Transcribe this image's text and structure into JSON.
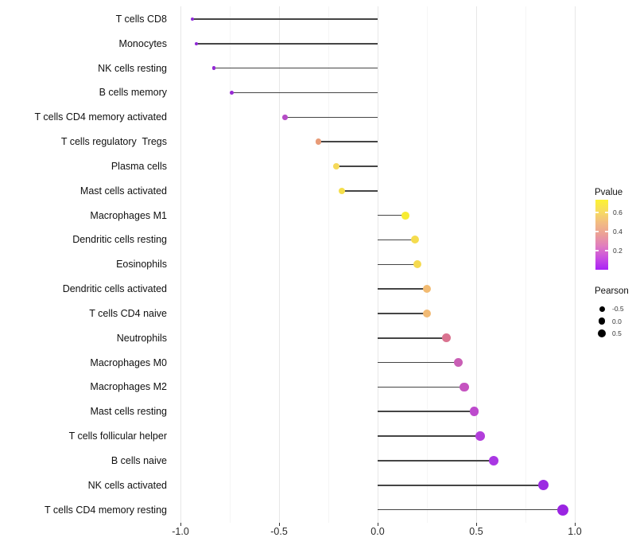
{
  "chart_data": {
    "type": "scatter",
    "variant": "horizontal-lollipop",
    "title": "",
    "xlabel": "",
    "ylabel": "",
    "xlim": [
      -1.06,
      1.08
    ],
    "x_tick_labels": [
      "-1.0",
      "-0.5",
      "0.0",
      "0.5",
      "1.0"
    ],
    "x_tick_values": [
      -1.0,
      -0.5,
      0.0,
      0.5,
      1.0
    ],
    "x_minor_tick_values": [
      -0.75,
      -0.25,
      0.25,
      0.75
    ],
    "grid": "vertical major and minor gridlines, very light gray, no horizontal gridlines",
    "legend_position": "right",
    "baseline_value": 0.0,
    "points": [
      {
        "label": "T cells CD8",
        "pearson": -0.94,
        "color": "#8e2ad8"
      },
      {
        "label": "Monocytes",
        "pearson": -0.92,
        "color": "#8f29d6"
      },
      {
        "label": "NK cells resting",
        "pearson": -0.83,
        "color": "#9329d4"
      },
      {
        "label": "B cells memory",
        "pearson": -0.74,
        "color": "#982ad4"
      },
      {
        "label": "T cells CD4 memory activated",
        "pearson": -0.47,
        "color": "#b54cc6"
      },
      {
        "label": "T cells regulatory  Tregs",
        "pearson": -0.3,
        "color": "#e89b77"
      },
      {
        "label": "Plasma cells",
        "pearson": -0.21,
        "color": "#f5d95a"
      },
      {
        "label": "Mast cells activated",
        "pearson": -0.18,
        "color": "#f5df4b"
      },
      {
        "label": "Macrophages M1",
        "pearson": 0.14,
        "color": "#f7ec33"
      },
      {
        "label": "Dendritic cells resting",
        "pearson": 0.19,
        "color": "#f5dc4e"
      },
      {
        "label": "Eosinophils",
        "pearson": 0.2,
        "color": "#f5da50"
      },
      {
        "label": "Dendritic cells activated",
        "pearson": 0.25,
        "color": "#f2bb72"
      },
      {
        "label": "T cells CD4 naive",
        "pearson": 0.25,
        "color": "#f1ba75"
      },
      {
        "label": "Neutrophils",
        "pearson": 0.35,
        "color": "#da7390"
      },
      {
        "label": "Macrophages M0",
        "pearson": 0.41,
        "color": "#c95fb5"
      },
      {
        "label": "Macrophages M2",
        "pearson": 0.44,
        "color": "#c553c0"
      },
      {
        "label": "Mast cells resting",
        "pearson": 0.49,
        "color": "#bd4acd"
      },
      {
        "label": "T cells follicular helper",
        "pearson": 0.52,
        "color": "#b23edb"
      },
      {
        "label": "B cells naive",
        "pearson": 0.59,
        "color": "#a937e3"
      },
      {
        "label": "NK cells activated",
        "pearson": 0.84,
        "color": "#9b2ae2"
      },
      {
        "label": "T cells CD4 memory resting",
        "pearson": 0.94,
        "color": "#9a24e2"
      }
    ]
  },
  "legend": {
    "pvalue": {
      "title": "Pvalue",
      "tick_labels": [
        "0.6",
        "0.4",
        "0.2"
      ],
      "tick_values": [
        0.6,
        0.4,
        0.2
      ],
      "gradient_stops": [
        "#fcf232",
        "#f7dc60",
        "#f2bb83",
        "#eb9e98",
        "#e07cc0",
        "#c94fe0",
        "#a922f6"
      ]
    },
    "pearson": {
      "title": "Pearson",
      "entries": [
        {
          "label": "-0.5",
          "value": -0.5
        },
        {
          "label": "0.0",
          "value": 0.0
        },
        {
          "label": "0.5",
          "value": 0.5
        }
      ],
      "dot_color": "#000000"
    }
  },
  "style": {
    "lollipop_line_color": "#454545",
    "grid_major_color": "#e7e7e7",
    "grid_minor_color": "#f5f5f5",
    "axis_tick_color": "#333333",
    "background": "#ffffff"
  }
}
